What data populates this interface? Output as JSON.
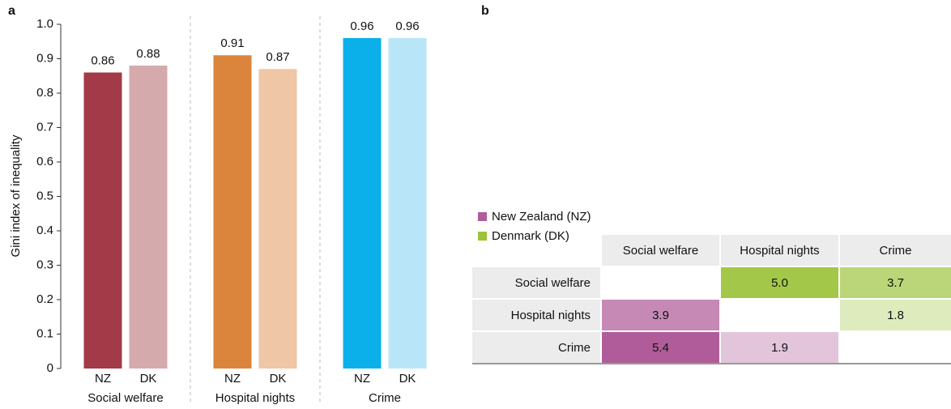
{
  "chart_data": [
    {
      "type": "bar",
      "panel": "a",
      "y_label": "Gini index of inequality",
      "categories": [
        "NZ",
        "DK",
        "NZ",
        "DK",
        "NZ",
        "DK"
      ],
      "groups": [
        "Social welfare",
        "Hospital nights",
        "Crime"
      ],
      "values": [
        0.86,
        0.88,
        0.91,
        0.87,
        0.96,
        0.96
      ],
      "colors": [
        "#a23b47",
        "#d5aaad",
        "#db843c",
        "#efc6a6",
        "#0bb0ea",
        "#b9e5f8"
      ],
      "ylim": [
        0,
        1
      ],
      "yticks": [
        0,
        0.1,
        0.2,
        0.3,
        0.4,
        0.5,
        0.6,
        0.7,
        0.8,
        0.9,
        {
          "value": 1,
          "label": "1.0"
        }
      ]
    },
    {
      "type": "heatmap",
      "panel": "b",
      "series": [
        {
          "name": "New Zealand (NZ)",
          "color": "#b05c9a"
        },
        {
          "name": "Denmark (DK)",
          "color": "#9cc33a"
        }
      ],
      "columns": [
        "Social welfare",
        "Hospital nights",
        "Crime"
      ],
      "rows": [
        "Social welfare",
        "Hospital nights",
        "Crime"
      ],
      "values": [
        [
          null,
          5,
          3.7
        ],
        [
          3.9,
          null,
          1.8
        ],
        [
          5.4,
          1.9,
          null
        ]
      ],
      "value_labels": [
        [
          null,
          "5.0",
          "3.7"
        ],
        [
          "3.9",
          null,
          "1.8"
        ],
        [
          "5.4",
          "1.9",
          null
        ]
      ]
    }
  ]
}
